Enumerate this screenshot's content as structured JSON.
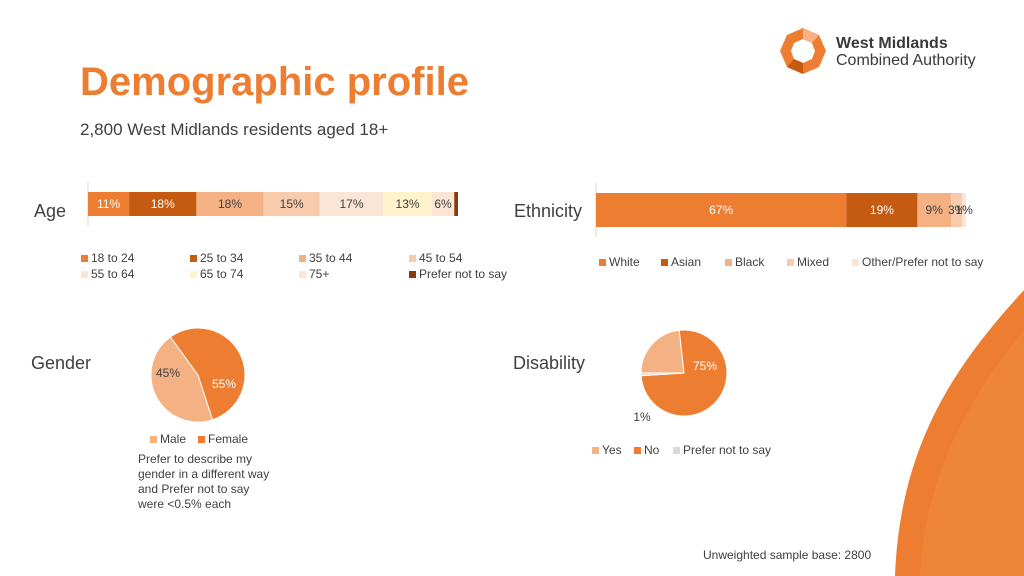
{
  "header": {
    "title": "Demographic profile",
    "subtitle": "2,800 West Midlands residents aged 18+"
  },
  "logo": {
    "line1": "West Midlands",
    "line2": "Combined Authority",
    "color": "#ED7D31"
  },
  "footer": {
    "base_note": "Unweighted sample base: 2800"
  },
  "gender_note": "Prefer to describe my gender in a different way and Prefer not to say were <0.5% each",
  "chart_data": [
    {
      "id": "age",
      "type": "bar",
      "orientation": "horizontal",
      "stacked": true,
      "label": "Age",
      "categories": [
        "18 to 24",
        "25 to 34",
        "35 to 44",
        "45 to 54",
        "55 to 64",
        "65 to 74",
        "75+",
        "Prefer not to say"
      ],
      "values": [
        11,
        18,
        18,
        15,
        17,
        13,
        6,
        1
      ],
      "value_labels": [
        "11%",
        "18%",
        "18%",
        "15%",
        "17%",
        "13%",
        "6%",
        ""
      ],
      "colors": [
        "#ED7D31",
        "#C55A11",
        "#F4B183",
        "#F8CBAD",
        "#FBE5D6",
        "#FFF2CC",
        "#FCE4D6",
        "#843C0C"
      ],
      "legend_placement": "bottom"
    },
    {
      "id": "ethnicity",
      "type": "bar",
      "orientation": "horizontal",
      "stacked": true,
      "label": "Ethnicity",
      "categories": [
        "White",
        "Asian",
        "Black",
        "Mixed",
        "Other/Prefer not to say"
      ],
      "values": [
        67,
        19,
        9,
        3,
        1
      ],
      "value_labels": [
        "67%",
        "19%",
        "9%",
        "3%",
        "1%"
      ],
      "colors": [
        "#ED7D31",
        "#C55A11",
        "#F4B183",
        "#F8CBAD",
        "#FBE5D6"
      ],
      "legend_placement": "bottom"
    },
    {
      "id": "gender",
      "type": "pie",
      "label": "Gender",
      "categories": [
        "Male",
        "Female"
      ],
      "values": [
        45,
        55
      ],
      "value_labels": [
        "45%",
        "55%"
      ],
      "colors": [
        "#F4B183",
        "#ED7D31"
      ],
      "legend_placement": "bottom"
    },
    {
      "id": "disability",
      "type": "pie",
      "label": "Disability",
      "categories": [
        "Yes",
        "No",
        "Prefer not to say"
      ],
      "values": [
        23,
        75,
        1
      ],
      "value_labels": [
        "23%",
        "75%",
        "1%"
      ],
      "colors": [
        "#F4B183",
        "#ED7D31",
        "#D9D9D9"
      ],
      "legend_placement": "bottom"
    }
  ]
}
